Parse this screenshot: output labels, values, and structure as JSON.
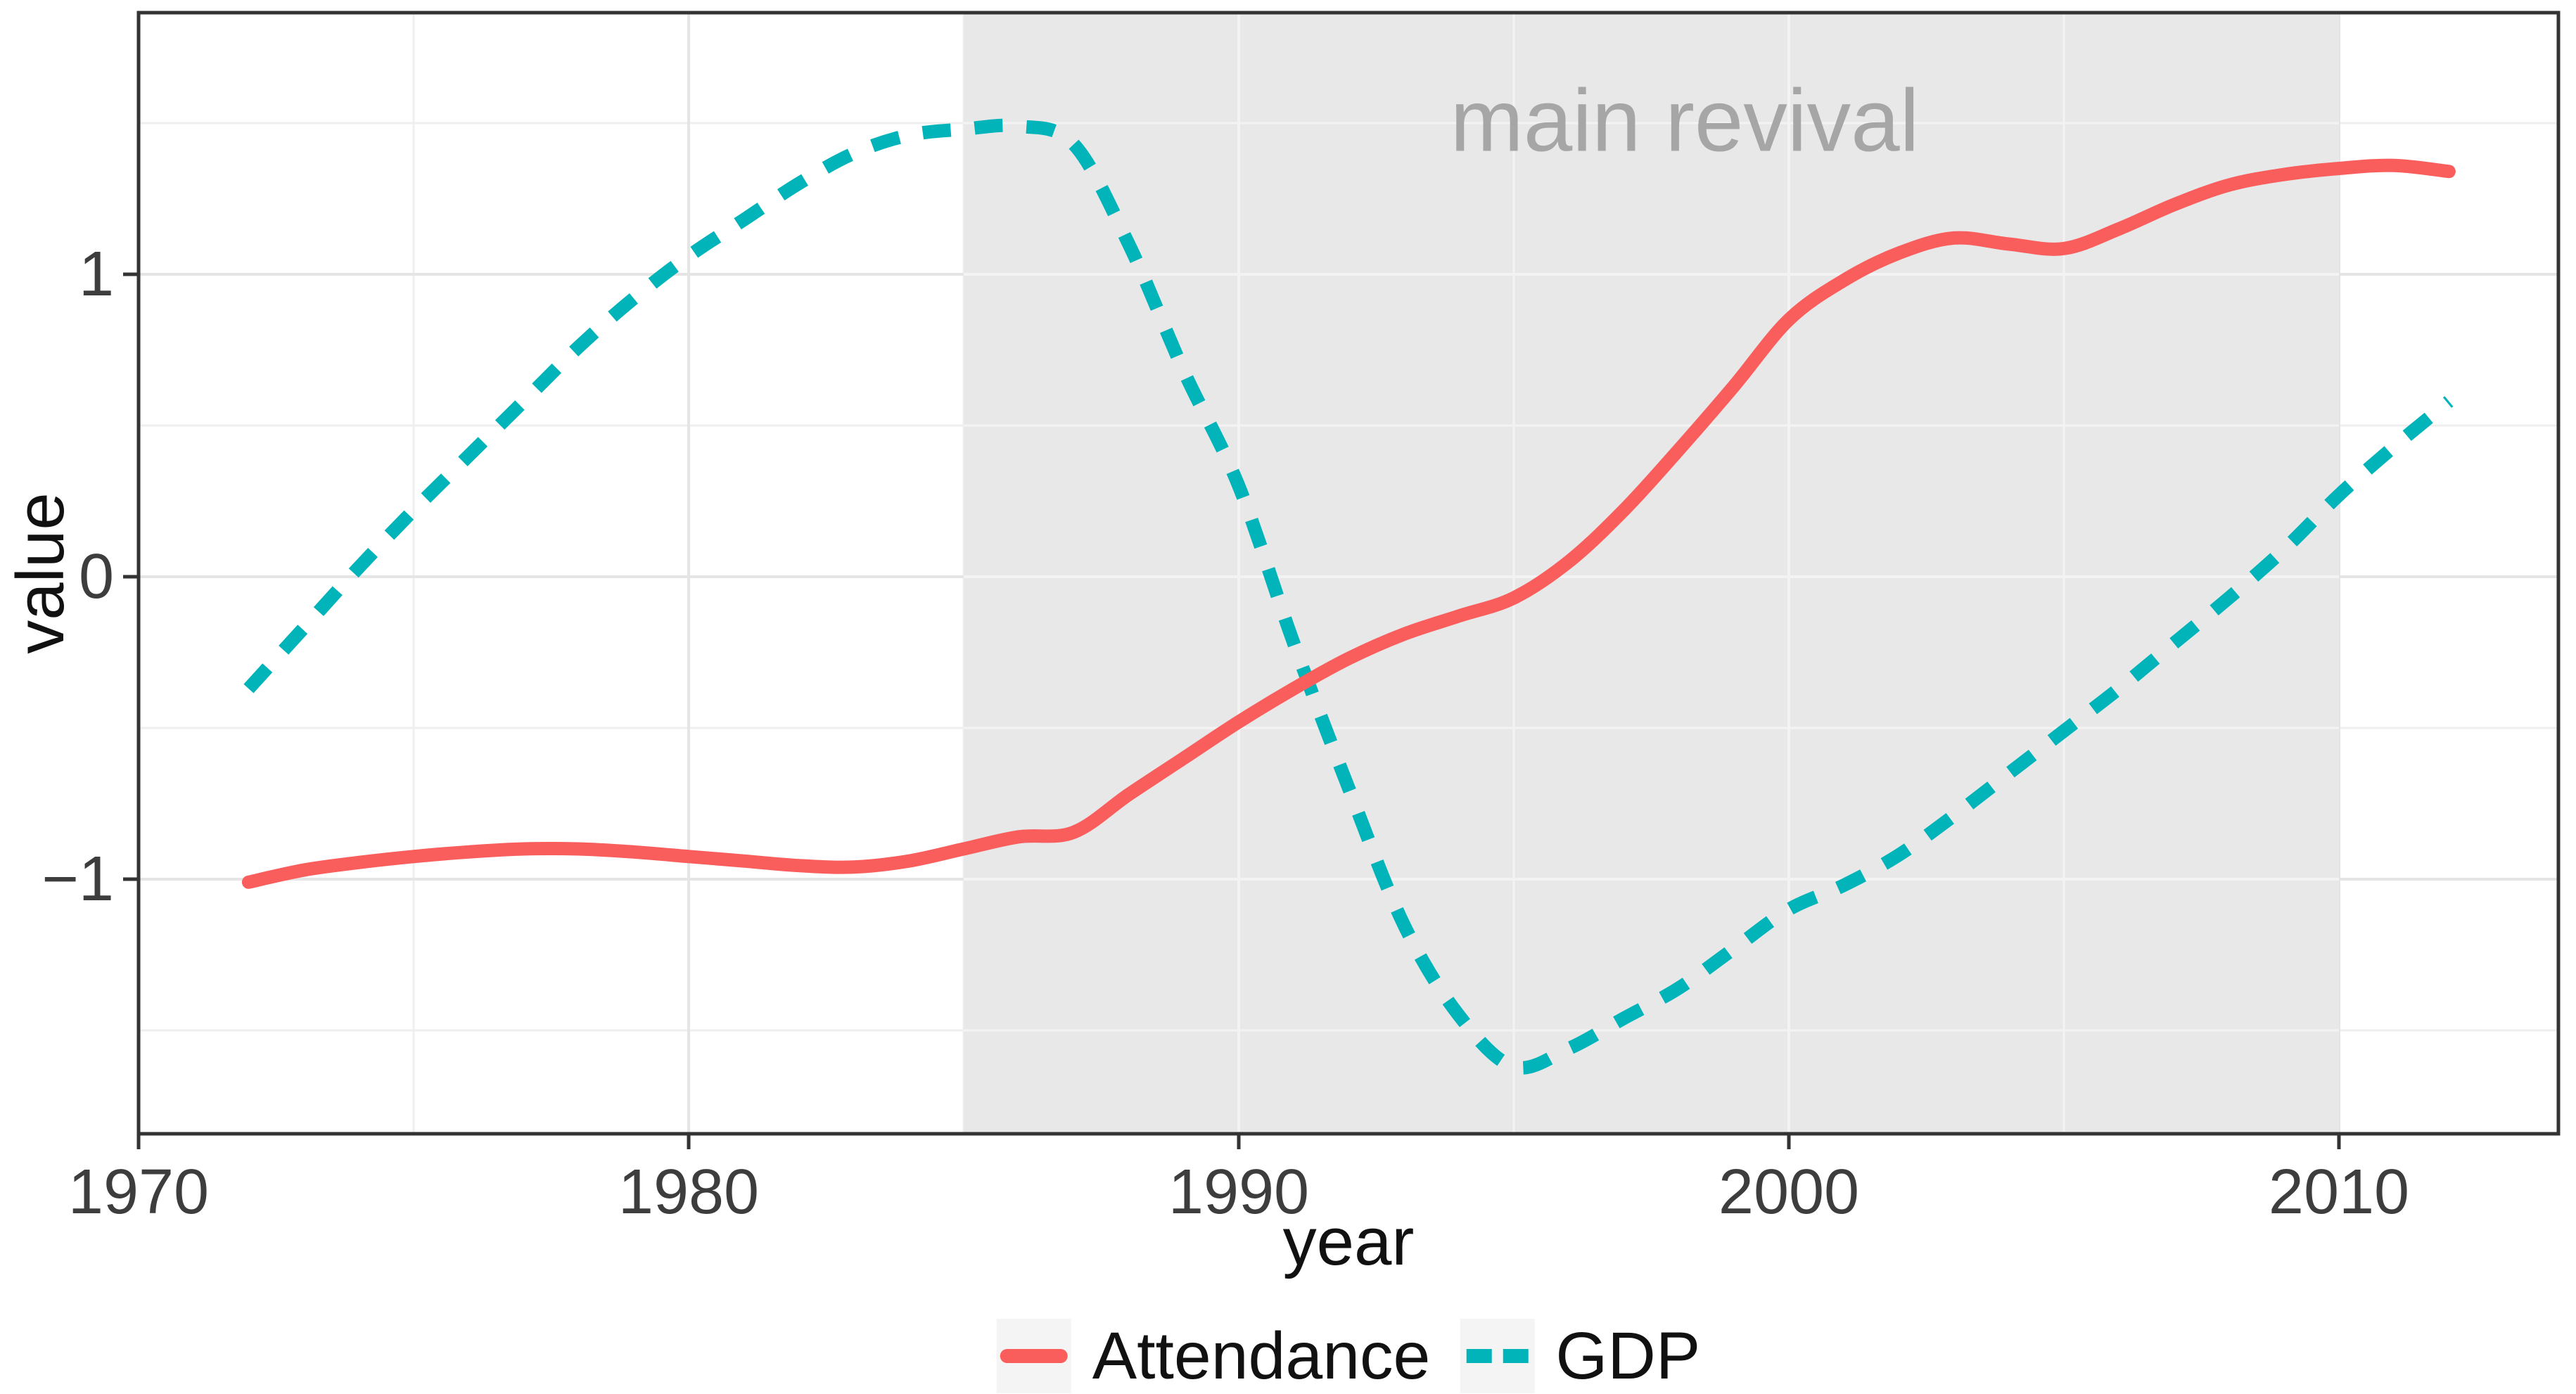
{
  "chart_data": {
    "type": "line",
    "title": "",
    "xlabel": "year",
    "ylabel": "value",
    "xlim": [
      1970,
      2014
    ],
    "ylim": [
      -1.83,
      1.87
    ],
    "x_ticks": [
      1970,
      1980,
      1990,
      2000,
      2010
    ],
    "x_tick_labels": [
      "1970",
      "1980",
      "1990",
      "2000",
      "2010"
    ],
    "y_ticks": [
      -1,
      0,
      1
    ],
    "y_tick_labels": [
      "−1",
      "0",
      "1"
    ],
    "grid": true,
    "legend_position": "bottom",
    "shaded_region": {
      "x_start": 1985,
      "x_end": 2010,
      "fill": "#e8e8e8"
    },
    "annotation": {
      "text": "main revival",
      "x": 1998,
      "y": 1.51,
      "color": "#a6a6a6"
    },
    "series": [
      {
        "name": "Attendance",
        "style": "solid",
        "color": "#fa5e5c",
        "x": [
          1972,
          1973,
          1974,
          1975,
          1976,
          1977,
          1978,
          1979,
          1980,
          1981,
          1982,
          1983,
          1984,
          1985,
          1986,
          1987,
          1988,
          1989,
          1990,
          1991,
          1992,
          1993,
          1994,
          1995,
          1996,
          1997,
          1998,
          1999,
          2000,
          2001,
          2002,
          2003,
          2004,
          2005,
          2006,
          2007,
          2008,
          2009,
          2010,
          2011,
          2012
        ],
        "values": [
          -1.01,
          -0.97,
          -0.945,
          -0.925,
          -0.91,
          -0.9,
          -0.9,
          -0.91,
          -0.925,
          -0.94,
          -0.955,
          -0.96,
          -0.94,
          -0.9,
          -0.86,
          -0.845,
          -0.72,
          -0.6,
          -0.48,
          -0.37,
          -0.27,
          -0.19,
          -0.13,
          -0.07,
          0.05,
          0.22,
          0.42,
          0.63,
          0.85,
          0.98,
          1.07,
          1.12,
          1.1,
          1.085,
          1.15,
          1.23,
          1.295,
          1.33,
          1.35,
          1.36,
          1.34
        ]
      },
      {
        "name": "GDP",
        "style": "dashed",
        "color": "#00b4b9",
        "x": [
          1972,
          1973,
          1974,
          1975,
          1976,
          1977,
          1978,
          1979,
          1980,
          1981,
          1982,
          1983,
          1984,
          1985,
          1986,
          1987,
          1988,
          1989,
          1990,
          1991,
          1992,
          1993,
          1994,
          1995,
          1996,
          1997,
          1998,
          1999,
          2000,
          2001,
          2002,
          2003,
          2004,
          2005,
          2006,
          2007,
          2008,
          2009,
          2010,
          2011,
          2012
        ],
        "values": [
          -0.37,
          -0.17,
          0.03,
          0.22,
          0.4,
          0.58,
          0.76,
          0.92,
          1.06,
          1.18,
          1.3,
          1.4,
          1.46,
          1.48,
          1.49,
          1.43,
          1.1,
          0.68,
          0.3,
          -0.22,
          -0.7,
          -1.15,
          -1.45,
          -1.62,
          -1.56,
          -1.46,
          -1.36,
          -1.23,
          -1.1,
          -1.02,
          -0.92,
          -0.79,
          -0.65,
          -0.51,
          -0.37,
          -0.22,
          -0.07,
          0.09,
          0.27,
          0.43,
          0.58
        ]
      }
    ]
  },
  "axes": {
    "x": {
      "title": "year"
    },
    "y": {
      "title": "value"
    }
  },
  "legend": {
    "items": [
      {
        "label": "Attendance"
      },
      {
        "label": "GDP"
      }
    ]
  }
}
